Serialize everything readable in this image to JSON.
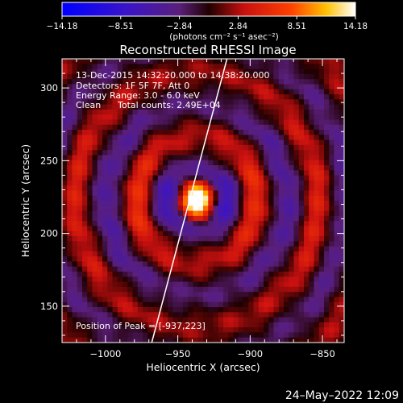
{
  "chart_data": {
    "type": "heatmap",
    "title": "Reconstructed RHESSI Image",
    "xlabel": "Heliocentric X (arcsec)",
    "ylabel": "Heliocentric Y (arcsec)",
    "xlim": [
      -1030,
      -835
    ],
    "ylim": [
      125,
      320
    ],
    "x_ticks": [
      {
        "value": -1000,
        "label": "−1000"
      },
      {
        "value": -950,
        "label": "−950"
      },
      {
        "value": -900,
        "label": "−900"
      },
      {
        "value": -850,
        "label": "−850"
      }
    ],
    "y_ticks": [
      {
        "value": 150,
        "label": "150"
      },
      {
        "value": 200,
        "label": "200"
      },
      {
        "value": 250,
        "label": "250"
      },
      {
        "value": 300,
        "label": "300"
      }
    ],
    "colorbar": {
      "min": -14.18,
      "max": 14.18,
      "ticks": [
        "−14.18",
        "−8.51",
        "−2.84",
        "2.84",
        "8.51",
        "14.18"
      ],
      "tick_values": [
        -14.18,
        -8.51,
        -2.84,
        2.84,
        8.51,
        14.18
      ],
      "unit_label": "(photons cm⁻² s⁻¹ asec⁻²)"
    },
    "annotations": {
      "time_range": "13-Dec-2015 14:32:20.000 to 14:38:20.000",
      "detectors": "Detectors: 1F 5F 7F, Att 0",
      "energy": "Energy Range: 3.0 - 6.0 keV",
      "method": "Clean",
      "counts": "Total counts: 2.49E+04",
      "peak": "Position of Peak = [-937,223]"
    },
    "peak": {
      "x": -937,
      "y": 223,
      "value": 14.18
    },
    "limb_line": [
      {
        "x": -968,
        "y": 125
      },
      {
        "x": -916,
        "y": 320
      }
    ],
    "ring_structure": {
      "center": {
        "x": -937,
        "y": 223
      },
      "ring_period_arcsec": 42,
      "negative_ring_peaks_arcsec": [
        24,
        62
      ],
      "positive_ring_peaks_arcsec": [
        42,
        84
      ]
    },
    "colormap": "blue-purple-red-yellow-white"
  },
  "footer": {
    "timestamp": "24–May–2022 12:09"
  }
}
